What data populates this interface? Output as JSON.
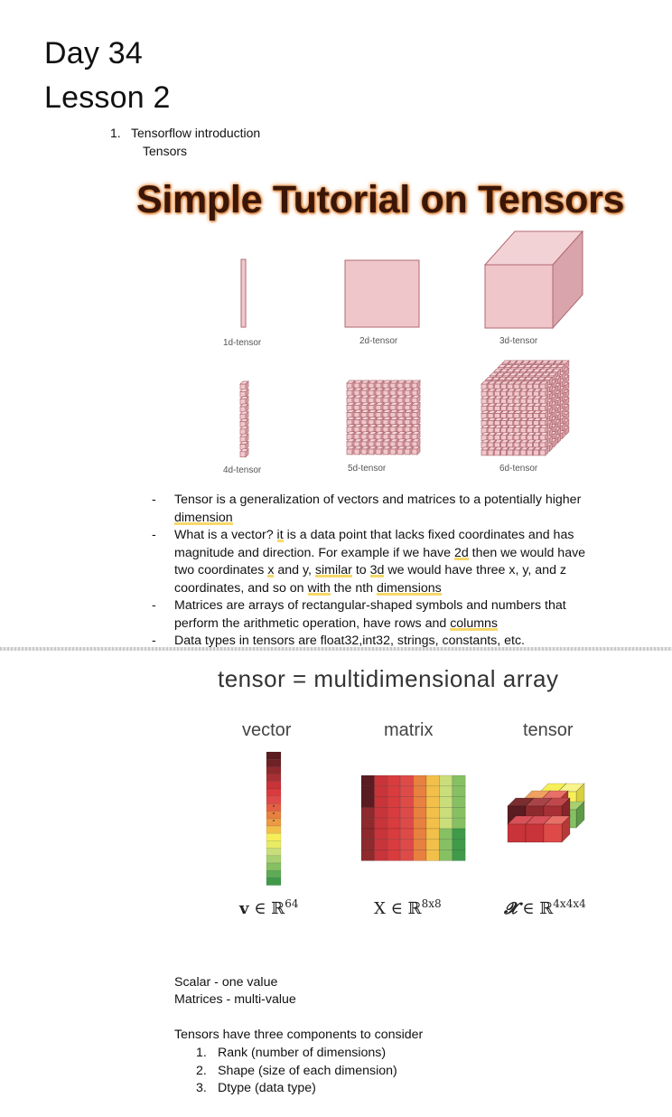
{
  "header": {
    "day": "Day 34",
    "lesson": "Lesson 2"
  },
  "outline": {
    "num": "1.",
    "item": "Tensorflow introduction",
    "sub": "Tensors"
  },
  "figure1": {
    "title": "Simple Tutorial on Tensors",
    "labels": [
      "1d-tensor",
      "2d-tensor",
      "3d-tensor",
      "4d-tensor",
      "5d-tensor",
      "6d-tensor"
    ]
  },
  "bullets": {
    "b1_pre": "Tensor is a generalization of vectors and matrices to a potentially higher ",
    "b1_hl": "dimension",
    "b2_a": "What is a vector? ",
    "b2_it": "it",
    "b2_b": " is a data point that lacks fixed coordinates and has magnitude and direction. For example if we have ",
    "b2_2d": "2d",
    "b2_c": " then we would have two coordinates ",
    "b2_x": "x",
    "b2_d": " and y, ",
    "b2_sim": "similar",
    "b2_e": " to ",
    "b2_3d": "3d",
    "b2_f": " we would have three x, y, and z coordinates, and so on ",
    "b2_with": "with",
    "b2_g": " the nth ",
    "b2_dims": "dimensions",
    "b3_pre": "Matrices are arrays of rectangular-shaped symbols and numbers that perform the arithmetic operation, have rows and ",
    "b3_hl": "columns",
    "b4": "Data types in tensors are float32,int32, strings, constants, etc."
  },
  "figure2": {
    "title": "tensor = multidimensional array",
    "cols": [
      "vector",
      "matrix",
      "tensor"
    ],
    "math": [
      {
        "sym": "v",
        "set": "∈ ℝ",
        "sup": "64"
      },
      {
        "sym": "X",
        "set": "∈ ℝ",
        "sup": "8x8"
      },
      {
        "sym": "𝓧",
        "set": "∈ ℝ",
        "sup": "4x4x4"
      }
    ],
    "colors": [
      "#5a1c20",
      "#8e2a2e",
      "#c8343a",
      "#de4a48",
      "#e88040",
      "#f2c04a",
      "#f6ef5a",
      "#c9de7a",
      "#86c063",
      "#3f9a4a"
    ]
  },
  "notes": {
    "scalar": "Scalar - one value",
    "matrices": "Matrices - multi-value",
    "components_intro": "Tensors have three components to consider",
    "components": [
      "Rank (number of dimensions)",
      "Shape (size of each dimension)",
      "Dtype (data type)"
    ]
  }
}
